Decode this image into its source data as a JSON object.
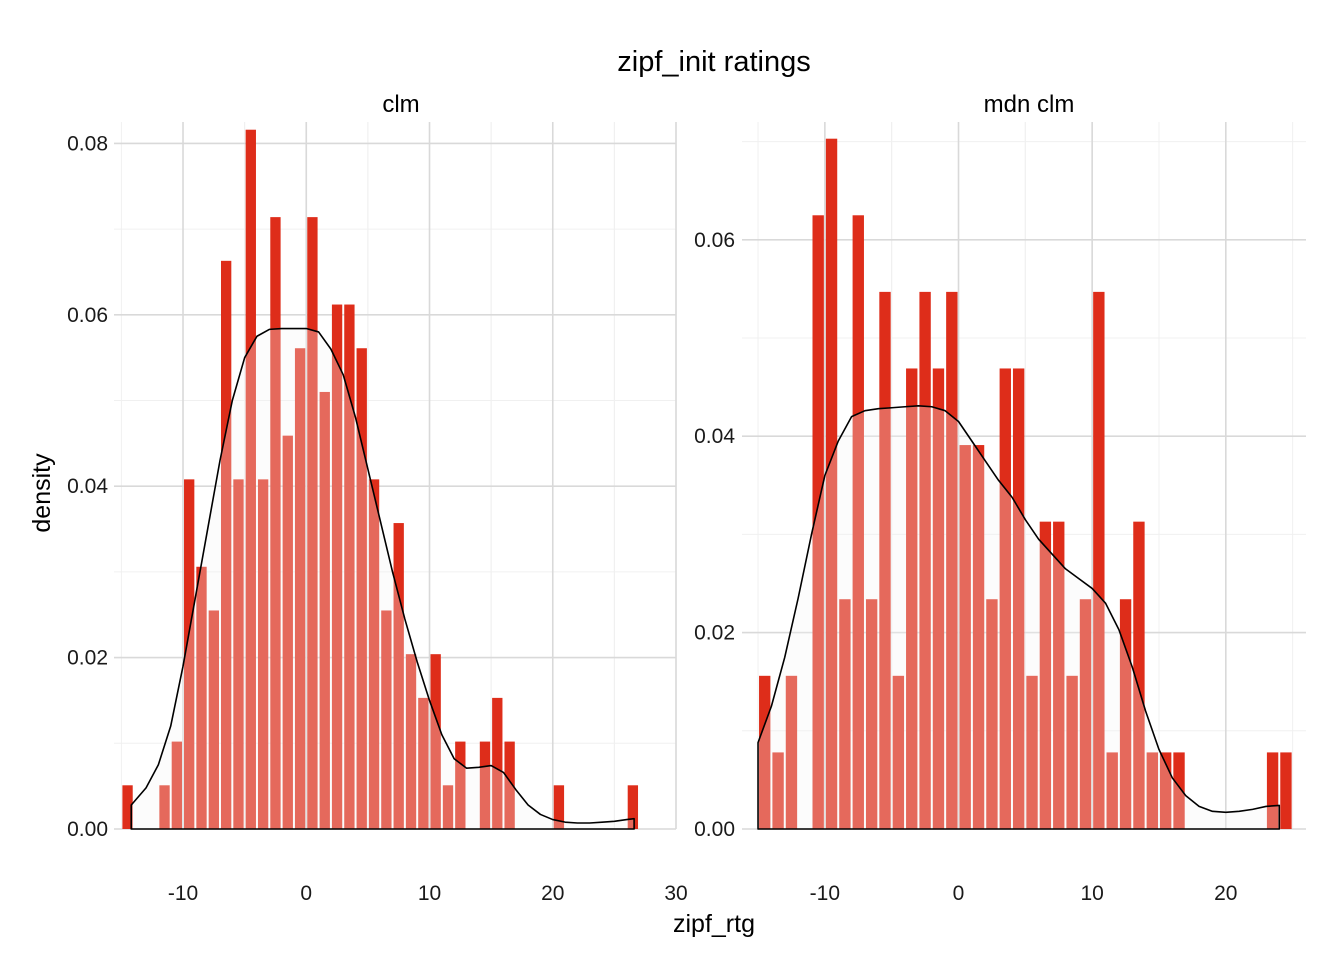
{
  "chart_data": {
    "type": "bar",
    "title": "zipf_init ratings",
    "xlabel": "zipf_rtg",
    "ylabel": "density",
    "colors": {
      "bar": "#DE2D1A",
      "density_fill": "#F5F5F5",
      "density_line": "#000000",
      "grid": "#D9D9D9"
    },
    "panels": [
      {
        "name": "clm",
        "xlim": [
          -15.6,
          30
        ],
        "ylim": [
          0,
          0.0825
        ],
        "x_ticks": [
          -10,
          0,
          10,
          20,
          30
        ],
        "x_tick_labels": [
          "-10",
          "0",
          "10",
          "20",
          "30"
        ],
        "y_ticks": [
          0,
          0.02,
          0.04,
          0.06,
          0.08
        ],
        "y_tick_labels": [
          "0.00",
          "0.02",
          "0.04",
          "0.06",
          "0.08"
        ],
        "bin_width": 1.0,
        "bins": [
          {
            "x": -14.5,
            "density": 0.0051
          },
          {
            "x": -13.5,
            "density": 0.0
          },
          {
            "x": -12.5,
            "density": 0.0
          },
          {
            "x": -11.5,
            "density": 0.0051
          },
          {
            "x": -10.5,
            "density": 0.0102
          },
          {
            "x": -9.5,
            "density": 0.0408
          },
          {
            "x": -8.5,
            "density": 0.0306
          },
          {
            "x": -7.5,
            "density": 0.0255
          },
          {
            "x": -6.5,
            "density": 0.0663
          },
          {
            "x": -5.5,
            "density": 0.0408
          },
          {
            "x": -4.5,
            "density": 0.0816
          },
          {
            "x": -3.5,
            "density": 0.0408
          },
          {
            "x": -2.5,
            "density": 0.0714
          },
          {
            "x": -1.5,
            "density": 0.0459
          },
          {
            "x": -0.5,
            "density": 0.0561
          },
          {
            "x": 0.5,
            "density": 0.0714
          },
          {
            "x": 1.5,
            "density": 0.051
          },
          {
            "x": 2.5,
            "density": 0.0612
          },
          {
            "x": 3.5,
            "density": 0.0612
          },
          {
            "x": 4.5,
            "density": 0.0561
          },
          {
            "x": 5.5,
            "density": 0.0408
          },
          {
            "x": 6.5,
            "density": 0.0255
          },
          {
            "x": 7.5,
            "density": 0.0357
          },
          {
            "x": 8.5,
            "density": 0.0204
          },
          {
            "x": 9.5,
            "density": 0.0153
          },
          {
            "x": 10.5,
            "density": 0.0204
          },
          {
            "x": 11.5,
            "density": 0.0051
          },
          {
            "x": 12.5,
            "density": 0.0102
          },
          {
            "x": 13.5,
            "density": 0.0
          },
          {
            "x": 14.5,
            "density": 0.0102
          },
          {
            "x": 15.5,
            "density": 0.0153
          },
          {
            "x": 16.5,
            "density": 0.0102
          },
          {
            "x": 17.5,
            "density": 0.0
          },
          {
            "x": 18.5,
            "density": 0.0
          },
          {
            "x": 19.5,
            "density": 0.0
          },
          {
            "x": 20.5,
            "density": 0.0051
          },
          {
            "x": 21.5,
            "density": 0.0
          },
          {
            "x": 22.5,
            "density": 0.0
          },
          {
            "x": 23.5,
            "density": 0.0
          },
          {
            "x": 24.5,
            "density": 0.0
          },
          {
            "x": 25.5,
            "density": 0.0
          },
          {
            "x": 26.5,
            "density": 0.0051
          }
        ],
        "density_curve": {
          "x": [
            -14.2,
            -13,
            -12,
            -11,
            -10,
            -9,
            -8,
            -7,
            -6,
            -5,
            -4,
            -3,
            -2,
            -1,
            0,
            1,
            2,
            3,
            4,
            5,
            6,
            7,
            8,
            9,
            10,
            11,
            12,
            13,
            14,
            15,
            16,
            17,
            18,
            19,
            20,
            21,
            22,
            23,
            24,
            25,
            26,
            26.6
          ],
          "y": [
            0.0028,
            0.0048,
            0.0075,
            0.012,
            0.019,
            0.027,
            0.035,
            0.043,
            0.05,
            0.055,
            0.0575,
            0.0583,
            0.0584,
            0.0584,
            0.0584,
            0.058,
            0.056,
            0.053,
            0.048,
            0.042,
            0.036,
            0.03,
            0.0245,
            0.0195,
            0.015,
            0.011,
            0.0082,
            0.0071,
            0.0072,
            0.0074,
            0.0066,
            0.0046,
            0.0028,
            0.0017,
            0.0011,
            0.0008,
            0.0007,
            0.0007,
            0.0008,
            0.0009,
            0.0011,
            0.0012
          ]
        }
      },
      {
        "name": "mdn clm",
        "xlim": [
          -16.2,
          26
        ],
        "ylim": [
          0,
          0.072
        ],
        "x_ticks": [
          -10,
          0,
          10,
          20
        ],
        "x_tick_labels": [
          "-10",
          "0",
          "10",
          "20"
        ],
        "y_ticks": [
          0,
          0.02,
          0.04,
          0.06
        ],
        "y_tick_labels": [
          "0.00",
          "0.02",
          "0.04",
          "0.06"
        ],
        "bin_width": 1.0,
        "bins": [
          {
            "x": -14.5,
            "density": 0.0156
          },
          {
            "x": -13.5,
            "density": 0.0078
          },
          {
            "x": -12.5,
            "density": 0.0156
          },
          {
            "x": -11.5,
            "density": 0.0
          },
          {
            "x": -10.5,
            "density": 0.0625
          },
          {
            "x": -9.5,
            "density": 0.0703
          },
          {
            "x": -8.5,
            "density": 0.0234
          },
          {
            "x": -7.5,
            "density": 0.0625
          },
          {
            "x": -6.5,
            "density": 0.0234
          },
          {
            "x": -5.5,
            "density": 0.0547
          },
          {
            "x": -4.5,
            "density": 0.0156
          },
          {
            "x": -3.5,
            "density": 0.0469
          },
          {
            "x": -2.5,
            "density": 0.0547
          },
          {
            "x": -1.5,
            "density": 0.0469
          },
          {
            "x": -0.5,
            "density": 0.0547
          },
          {
            "x": 0.5,
            "density": 0.0391
          },
          {
            "x": 1.5,
            "density": 0.0391
          },
          {
            "x": 2.5,
            "density": 0.0234
          },
          {
            "x": 3.5,
            "density": 0.0469
          },
          {
            "x": 4.5,
            "density": 0.0469
          },
          {
            "x": 5.5,
            "density": 0.0156
          },
          {
            "x": 6.5,
            "density": 0.0313
          },
          {
            "x": 7.5,
            "density": 0.0313
          },
          {
            "x": 8.5,
            "density": 0.0156
          },
          {
            "x": 9.5,
            "density": 0.0234
          },
          {
            "x": 10.5,
            "density": 0.0547
          },
          {
            "x": 11.5,
            "density": 0.0078
          },
          {
            "x": 12.5,
            "density": 0.0234
          },
          {
            "x": 13.5,
            "density": 0.0313
          },
          {
            "x": 14.5,
            "density": 0.0078
          },
          {
            "x": 15.5,
            "density": 0.0078
          },
          {
            "x": 16.5,
            "density": 0.0078
          },
          {
            "x": 17.5,
            "density": 0.0
          },
          {
            "x": 18.5,
            "density": 0.0
          },
          {
            "x": 19.5,
            "density": 0.0
          },
          {
            "x": 20.5,
            "density": 0.0
          },
          {
            "x": 21.5,
            "density": 0.0
          },
          {
            "x": 22.5,
            "density": 0.0
          },
          {
            "x": 23.5,
            "density": 0.0078
          },
          {
            "x": 24.5,
            "density": 0.0078
          }
        ],
        "density_curve": {
          "x": [
            -15,
            -14,
            -13,
            -12,
            -11,
            -10,
            -9,
            -8,
            -7,
            -6,
            -5,
            -4,
            -3,
            -2,
            -1,
            0,
            1,
            2,
            3,
            4,
            5,
            6,
            7,
            8,
            9,
            10,
            11,
            12,
            13,
            14,
            15,
            16,
            17,
            18,
            19,
            20,
            21,
            22,
            23,
            24
          ],
          "y": [
            0.0088,
            0.0125,
            0.0175,
            0.0235,
            0.03,
            0.036,
            0.0395,
            0.042,
            0.0426,
            0.0428,
            0.0429,
            0.043,
            0.0431,
            0.043,
            0.0426,
            0.0415,
            0.0395,
            0.0375,
            0.0355,
            0.0338,
            0.0315,
            0.0295,
            0.028,
            0.0265,
            0.0255,
            0.0245,
            0.023,
            0.0203,
            0.0165,
            0.012,
            0.0081,
            0.0052,
            0.0034,
            0.0023,
            0.0018,
            0.0017,
            0.0018,
            0.002,
            0.0023,
            0.0024
          ]
        }
      }
    ]
  }
}
